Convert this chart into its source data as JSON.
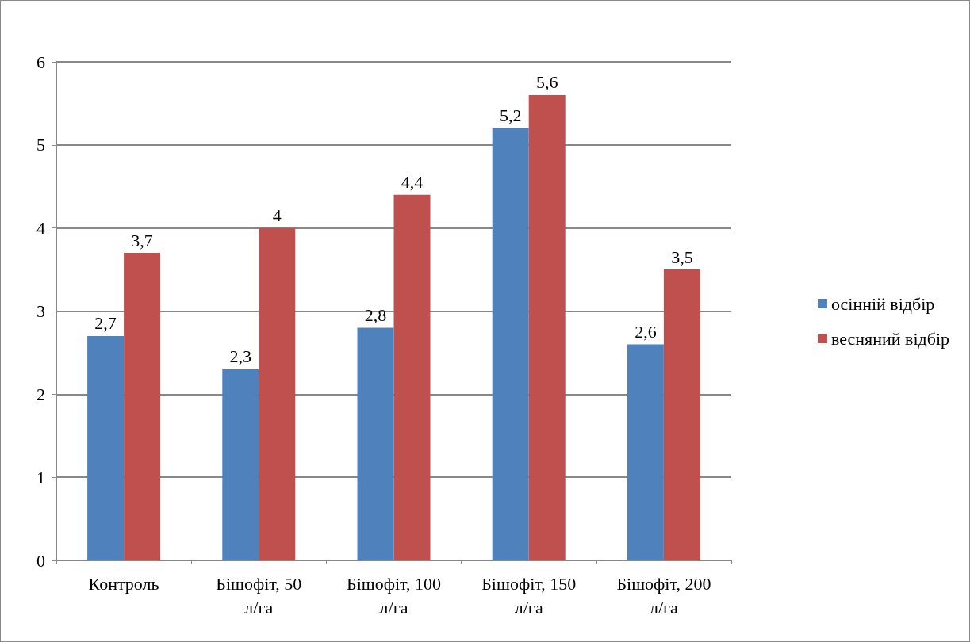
{
  "chart_data": {
    "type": "bar",
    "categories": [
      "Контроль",
      "Бішофіт, 50 л/га",
      "Бішофіт, 100 л/га",
      "Бішофіт, 150 л/га",
      "Бішофіт, 200 л/га"
    ],
    "series": [
      {
        "name": "осінній відбір",
        "color": "#4f81bd",
        "values": [
          2.7,
          2.3,
          2.8,
          5.2,
          2.6
        ],
        "value_labels": [
          "2,7",
          "2,3",
          "2,8",
          "5,2",
          "2,6"
        ]
      },
      {
        "name": "весняний відбір",
        "color": "#c0504d",
        "values": [
          3.7,
          4,
          4.4,
          5.6,
          3.5
        ],
        "value_labels": [
          "3,7",
          "4",
          "4,4",
          "5,6",
          "3,5"
        ]
      }
    ],
    "ylim": [
      0,
      6
    ],
    "yticks": [
      0,
      1,
      2,
      3,
      4,
      5,
      6
    ],
    "grid": "y",
    "legend": "right"
  }
}
